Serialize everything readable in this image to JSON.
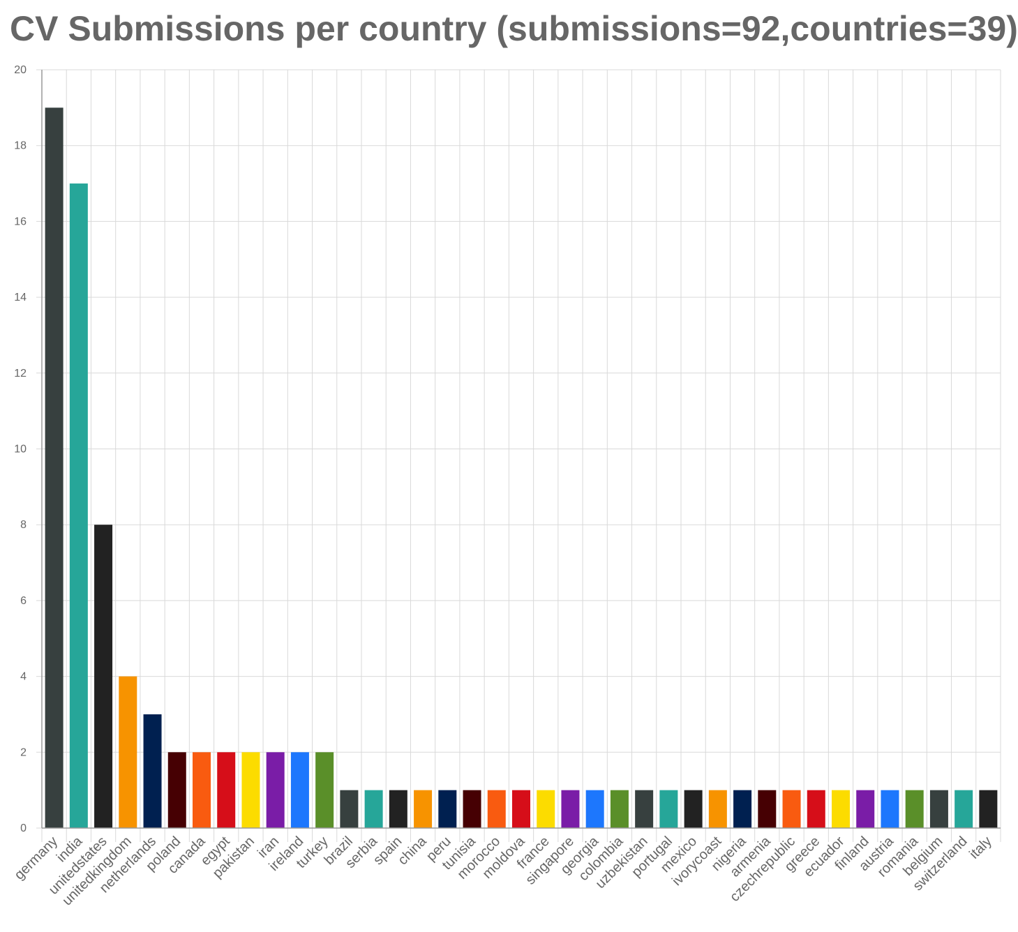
{
  "chart_data": {
    "type": "bar",
    "title": "CV Submissions per country (submissions=92,countries=39)",
    "xlabel": "",
    "ylabel": "",
    "ylim": [
      0,
      20
    ],
    "yticks": [
      0,
      2,
      4,
      6,
      8,
      10,
      12,
      14,
      16,
      18,
      20
    ],
    "grid": true,
    "legend": "none",
    "categories": [
      "germany",
      "india",
      "unitedstates",
      "unitedkingdom",
      "netherlands",
      "poland",
      "canada",
      "egypt",
      "pakistan",
      "iran",
      "ireland",
      "turkey",
      "brazil",
      "serbia",
      "spain",
      "china",
      "peru",
      "tunisia",
      "morocco",
      "moldova",
      "france",
      "singapore",
      "georgia",
      "colombia",
      "uzbekistan",
      "portugal",
      "mexico",
      "ivorycoast",
      "nigeria",
      "armenia",
      "czechrepublic",
      "greece",
      "ecuador",
      "finland",
      "austria",
      "romania",
      "belgium",
      "switzerland",
      "italy"
    ],
    "values": [
      19,
      17,
      8,
      4,
      3,
      2,
      2,
      2,
      2,
      2,
      2,
      2,
      1,
      1,
      1,
      1,
      1,
      1,
      1,
      1,
      1,
      1,
      1,
      1,
      1,
      1,
      1,
      1,
      1,
      1,
      1,
      1,
      1,
      1,
      1,
      1,
      1,
      1,
      1
    ],
    "palette": [
      "#37403f",
      "#26a699",
      "#222222",
      "#f79300",
      "#002050",
      "#460003",
      "#f95b10",
      "#d60e19",
      "#fcdc00",
      "#7a1da7",
      "#1d77fd",
      "#5a8f29"
    ]
  }
}
